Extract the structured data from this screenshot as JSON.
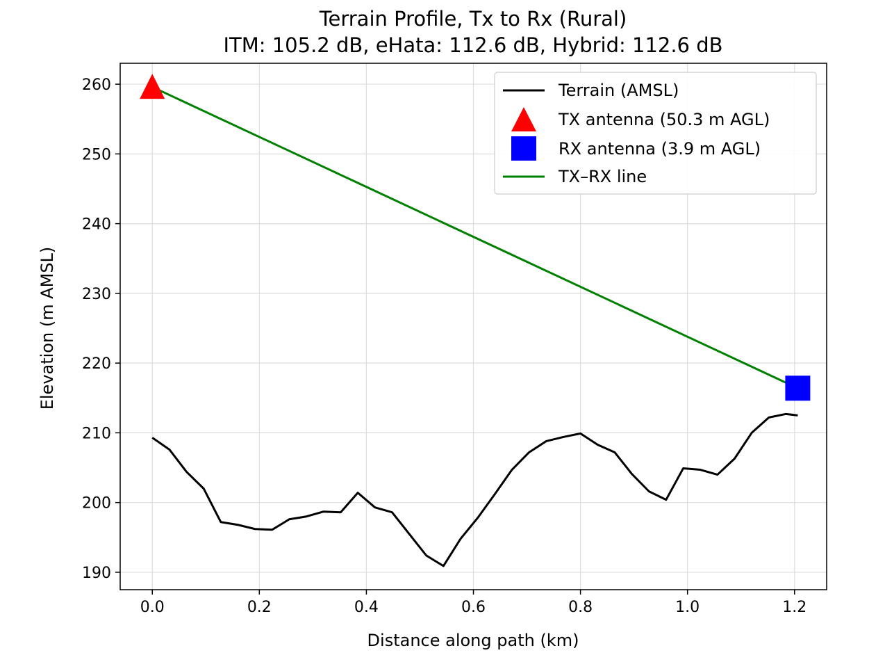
{
  "chart_data": {
    "type": "line",
    "title": "Terrain Profile, Tx to Rx (Rural)",
    "subtitle": "ITM: 105.2 dB, eHata: 112.6 dB, Hybrid: 112.6 dB",
    "xlabel": "Distance along path (km)",
    "ylabel": "Elevation (m AMSL)",
    "xlim": [
      -0.06,
      1.26
    ],
    "ylim": [
      187.5,
      263.0
    ],
    "xticks": [
      0.0,
      0.2,
      0.4,
      0.6,
      0.8,
      1.0,
      1.2
    ],
    "xtick_labels": [
      "0.0",
      "0.2",
      "0.4",
      "0.6",
      "0.8",
      "1.0",
      "1.2"
    ],
    "yticks": [
      190,
      200,
      210,
      220,
      230,
      240,
      250,
      260
    ],
    "ytick_labels": [
      "190",
      "200",
      "210",
      "220",
      "230",
      "240",
      "250",
      "260"
    ],
    "grid": true,
    "legend_position": "top-right",
    "series": [
      {
        "name": "Terrain (AMSL)",
        "kind": "line",
        "color": "#000000",
        "x": [
          0.0,
          0.032,
          0.064,
          0.096,
          0.128,
          0.16,
          0.192,
          0.224,
          0.256,
          0.288,
          0.32,
          0.352,
          0.384,
          0.416,
          0.448,
          0.48,
          0.512,
          0.544,
          0.576,
          0.608,
          0.64,
          0.672,
          0.704,
          0.736,
          0.768,
          0.8,
          0.832,
          0.864,
          0.896,
          0.928,
          0.96,
          0.992,
          1.024,
          1.056,
          1.088,
          1.12,
          1.152,
          1.184,
          1.206
        ],
        "y": [
          209.3,
          207.6,
          204.4,
          202.0,
          197.2,
          196.8,
          196.2,
          196.1,
          197.6,
          198.0,
          198.7,
          198.6,
          201.4,
          199.3,
          198.6,
          195.5,
          192.4,
          190.9,
          194.8,
          197.8,
          201.2,
          204.7,
          207.2,
          208.8,
          209.4,
          209.9,
          208.3,
          207.2,
          204.1,
          201.6,
          200.4,
          204.9,
          204.7,
          204.0,
          206.3,
          210.0,
          212.2,
          212.7,
          212.5
        ]
      },
      {
        "name": "TX antenna (50.3 m AGL)",
        "kind": "marker",
        "marker": "triangle",
        "color": "#ff0000",
        "x": [
          0.0
        ],
        "y": [
          259.6
        ]
      },
      {
        "name": "RX antenna (3.9 m AGL)",
        "kind": "marker",
        "marker": "square",
        "color": "#0000ff",
        "x": [
          1.206
        ],
        "y": [
          216.4
        ]
      },
      {
        "name": "TX–RX line",
        "kind": "line",
        "color": "#008000",
        "x": [
          0.0,
          1.206
        ],
        "y": [
          259.6,
          216.4
        ]
      }
    ]
  }
}
